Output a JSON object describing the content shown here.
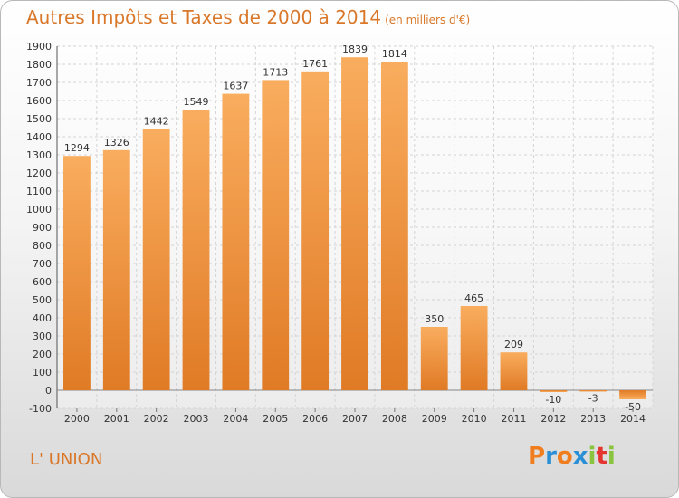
{
  "header": {
    "title": "Autres Impôts et Taxes de 2000 à 2014",
    "unit": "(en milliers d'€)"
  },
  "footer": {
    "commune": "L' UNION"
  },
  "logo": {
    "text": "Proxiti",
    "colors": [
      "#f07d1e",
      "#2b8fd6",
      "#f07d1e",
      "#2b8fd6",
      "#8ac43f",
      "#e3342f",
      "#8ac43f"
    ]
  },
  "colors": {
    "bar_light": "#f8ab5c",
    "bar_dark": "#e07a25",
    "title": "#d9782a",
    "grid": "#d4d4d4"
  },
  "chart_data": {
    "type": "bar",
    "title": "Autres Impôts et Taxes de 2000 à 2014",
    "subtitle": "(en milliers d'€)",
    "xlabel": "",
    "ylabel": "",
    "categories": [
      "2000",
      "2001",
      "2002",
      "2003",
      "2004",
      "2005",
      "2006",
      "2007",
      "2008",
      "2009",
      "2010",
      "2011",
      "2012",
      "2013",
      "2014"
    ],
    "values": [
      1294,
      1326,
      1442,
      1549,
      1637,
      1713,
      1761,
      1839,
      1814,
      350,
      465,
      209,
      -10,
      -3,
      -50
    ],
    "value_labels": [
      "1294",
      "1326",
      "1442",
      "1549",
      "1637",
      "1713",
      "1761",
      "1839",
      "1814",
      "350",
      "465",
      "209",
      "-10",
      "-3",
      "-50"
    ],
    "ylim": [
      -100,
      1900
    ],
    "yticks": [
      -100,
      0,
      100,
      200,
      300,
      400,
      500,
      600,
      700,
      800,
      900,
      1000,
      1100,
      1200,
      1300,
      1400,
      1500,
      1600,
      1700,
      1800,
      1900
    ],
    "grid": true,
    "legend": "none"
  }
}
